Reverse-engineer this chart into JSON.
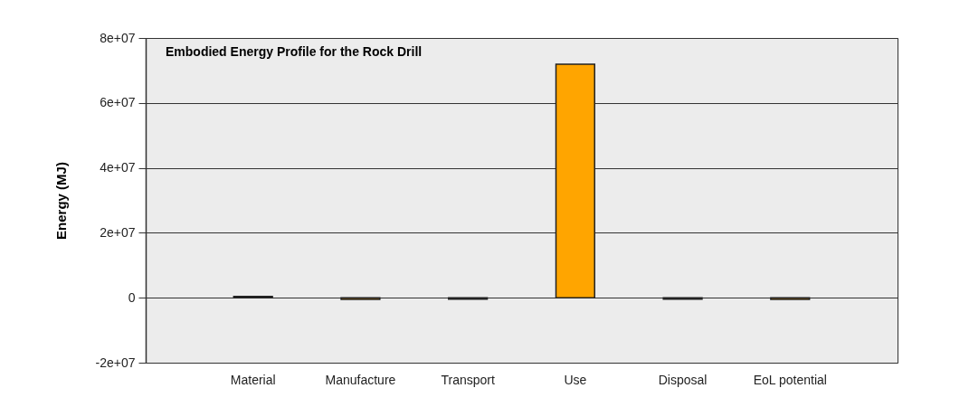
{
  "chart_data": {
    "type": "bar",
    "title": "Embodied Energy Profile for the Rock Drill",
    "ylabel": "Energy (MJ)",
    "categories": [
      "Material",
      "Manufacture",
      "Transport",
      "Use",
      "Disposal",
      "EoL potential"
    ],
    "values": [
      400000,
      -500000,
      -400000,
      71900000,
      -400000,
      -500000
    ],
    "color": "#ffa500",
    "ylim": [
      -20000000,
      80000000
    ],
    "yticks": [
      {
        "value": -20000000,
        "label": "-2e+07"
      },
      {
        "value": 0,
        "label": "0"
      },
      {
        "value": 20000000,
        "label": "2e+07"
      },
      {
        "value": 40000000,
        "label": "4e+07"
      },
      {
        "value": 60000000,
        "label": "6e+07"
      },
      {
        "value": 80000000,
        "label": "8e+07"
      }
    ],
    "grid": "y"
  }
}
